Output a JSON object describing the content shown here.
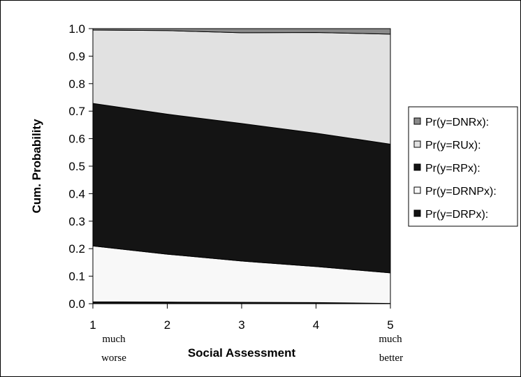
{
  "chart_data": {
    "type": "area",
    "xlabel": "Social Assessment",
    "ylabel": "Cum. Probability",
    "x": [
      1,
      2,
      3,
      4,
      5
    ],
    "x_ticks": [
      "1",
      "2",
      "3",
      "4",
      "5"
    ],
    "x_end_notes": {
      "left": [
        "much",
        "worse"
      ],
      "right": [
        "much",
        "better"
      ]
    },
    "ylim": [
      0,
      1
    ],
    "y_ticks": [
      "0.0",
      "0.1",
      "0.2",
      "0.3",
      "0.4",
      "0.5",
      "0.6",
      "0.7",
      "0.8",
      "0.9",
      "1.0"
    ],
    "grid": false,
    "legend_position": "right",
    "stacked": true,
    "series": [
      {
        "name": "Pr(y=DRPx):",
        "values": [
          0.007,
          0.006,
          0.005,
          0.004,
          0.001
        ],
        "color": "#111111"
      },
      {
        "name": "Pr(y=DRNPx):",
        "values": [
          0.203,
          0.174,
          0.15,
          0.131,
          0.111
        ],
        "color": "#f8f8f8"
      },
      {
        "name": "Pr(y=RPx):",
        "values": [
          0.518,
          0.509,
          0.5,
          0.485,
          0.468
        ],
        "color": "#141414"
      },
      {
        "name": "Pr(y=RUx):",
        "values": [
          0.267,
          0.304,
          0.33,
          0.366,
          0.4
        ],
        "color": "#e1e1e1"
      },
      {
        "name": "Pr(y=DNRx):",
        "values": [
          0.005,
          0.007,
          0.015,
          0.014,
          0.02
        ],
        "color": "#8a8a8a"
      }
    ],
    "legend_order": [
      "Pr(y=DNRx):",
      "Pr(y=RUx):",
      "Pr(y=RPx):",
      "Pr(y=DRNPx):",
      "Pr(y=DRPx):"
    ]
  }
}
